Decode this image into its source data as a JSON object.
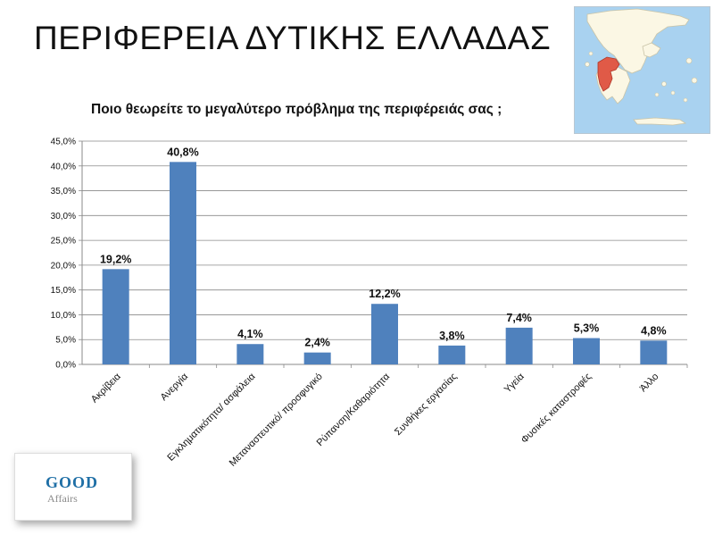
{
  "slide": {
    "title": "ΠΕΡΙΦΕΡΕΙΑ ΔΥΤΙΚΗΣ ΕΛΛΑΔΑΣ"
  },
  "logo": {
    "word1": "GOOD",
    "word2": "Affairs"
  },
  "chart_data": {
    "type": "bar",
    "title": "Ποιο θεωρείτε το μεγαλύτερο πρόβλημα της περιφέρειάς σας ;",
    "categories": [
      "Ακρίβεια",
      "Ανεργία",
      "Εγκληματικότητα/ ασφάλεια",
      "Μεταναστευτικό/ προσφυγικό",
      "Ρύπανση/Καθαριότητα",
      "Συνθήκες εργασίας",
      "Υγεία",
      "Φυσικές καταστροφές",
      "Άλλο"
    ],
    "values": [
      19.2,
      40.8,
      4.1,
      2.4,
      12.2,
      3.8,
      7.4,
      5.3,
      4.8
    ],
    "value_labels": [
      "19,2%",
      "40,8%",
      "4,1%",
      "2,4%",
      "12,2%",
      "3,8%",
      "7,4%",
      "5,3%",
      "4,8%"
    ],
    "yticks": [
      "0,0%",
      "5,0%",
      "10,0%",
      "15,0%",
      "20,0%",
      "25,0%",
      "30,0%",
      "35,0%",
      "40,0%",
      "45,0%"
    ],
    "ylim": [
      0,
      45
    ],
    "grid": true,
    "legend": "none",
    "bar_color": "#4f81bd"
  }
}
